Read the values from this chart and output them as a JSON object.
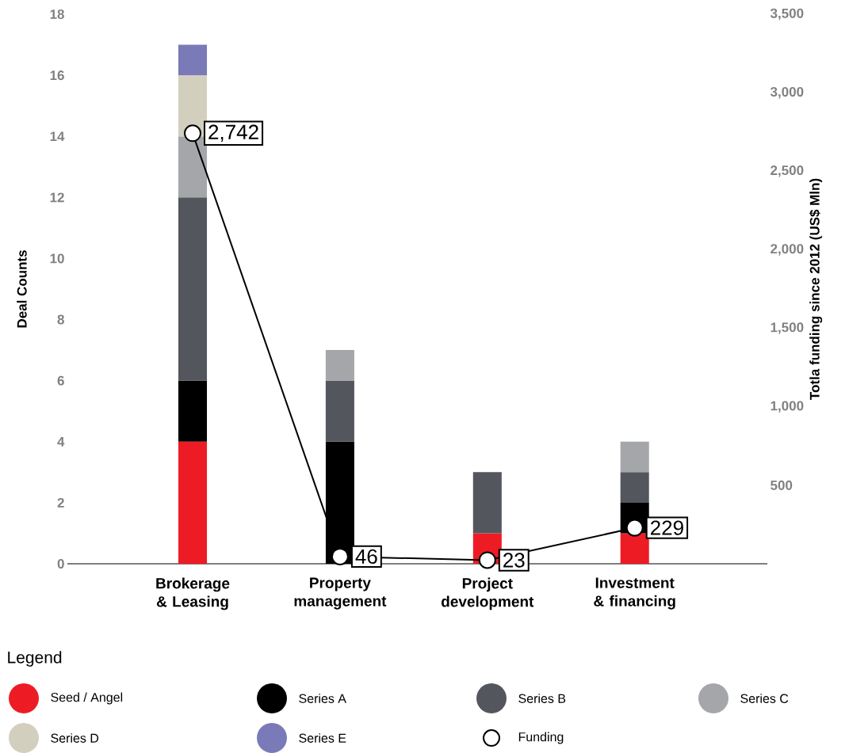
{
  "chart_data": {
    "type": "bar",
    "stacked": true,
    "categories": [
      "Brokerage & Leasing",
      "Property management",
      "Project development",
      "Investment & financing"
    ],
    "ylabel": "Deal Counts",
    "y2label": "Totla funding since 2012 (US$ Mln)",
    "legend_title": "Legend",
    "ylim": [
      0,
      18
    ],
    "yticks": [
      0,
      2,
      4,
      6,
      8,
      10,
      12,
      14,
      16,
      18
    ],
    "y2lim": [
      0,
      3500
    ],
    "y2ticks": [
      500,
      {
        "value": 1000,
        "label": "1,000"
      },
      {
        "value": 1500,
        "label": "1,500"
      },
      {
        "value": 2000,
        "label": "2,000"
      },
      {
        "value": 2500,
        "label": "2,500"
      },
      {
        "value": 3000,
        "label": "3,000"
      },
      {
        "value": 3500,
        "label": "3,500"
      }
    ],
    "grid": false,
    "legend": "bottom",
    "series": [
      {
        "name": "Seed / Angel",
        "color": "#ed1c24",
        "values": [
          4,
          0,
          1,
          1
        ]
      },
      {
        "name": "Series A",
        "color": "#000000",
        "values": [
          2,
          4,
          0,
          1
        ]
      },
      {
        "name": "Series B",
        "color": "#54565e",
        "values": [
          6,
          2,
          2,
          1
        ]
      },
      {
        "name": "Series C",
        "color": "#a4a6a9",
        "values": [
          2,
          1,
          0,
          1
        ]
      },
      {
        "name": "Series D",
        "color": "#d3cfbe",
        "values": [
          2,
          0,
          0,
          0
        ]
      },
      {
        "name": "Series E",
        "color": "#7a7ab8",
        "values": [
          1,
          0,
          0,
          0
        ]
      },
      {
        "name": "Funding",
        "type": "line",
        "axis": "y2",
        "color": "#000000",
        "marker": "circle",
        "line_style": "solid",
        "values": [
          2742,
          46,
          23,
          229
        ],
        "value_labels": [
          "2,742",
          "46",
          "23",
          "229"
        ]
      }
    ]
  }
}
